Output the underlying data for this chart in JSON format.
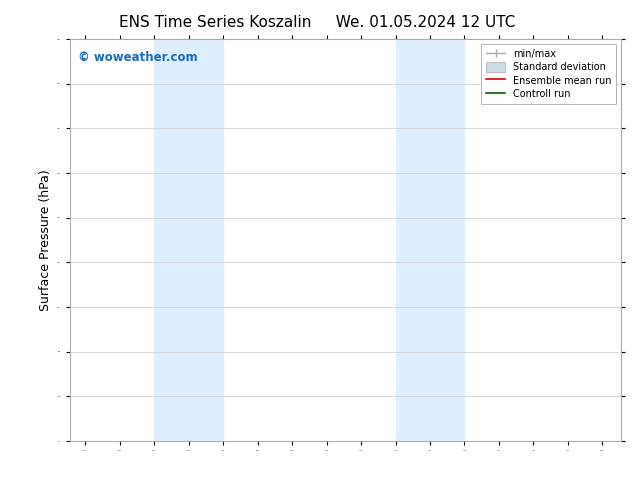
{
  "title_left": "ENS Time Series Koszalin",
  "title_right": "We. 01.05.2024 12 UTC",
  "ylabel": "Surface Pressure (hPa)",
  "xlabel": "",
  "xlim": [
    1.55,
    17.55
  ],
  "ylim": [
    970,
    1060
  ],
  "yticks": [
    970,
    980,
    990,
    1000,
    1010,
    1020,
    1030,
    1040,
    1050,
    1060
  ],
  "xtick_labels": [
    "02.05",
    "03.05",
    "04.05",
    "05.05",
    "06.05",
    "07.05",
    "08.05",
    "09.05",
    "10.05",
    "11.05",
    "12.05",
    "13.05",
    "14.05",
    "15.05",
    "16.05",
    "17.05"
  ],
  "xtick_positions": [
    2,
    3,
    4,
    5,
    6,
    7,
    8,
    9,
    10,
    11,
    12,
    13,
    14,
    15,
    16,
    17
  ],
  "shaded_bands": [
    {
      "x_start": 4.0,
      "x_end": 6.0
    },
    {
      "x_start": 11.0,
      "x_end": 13.0
    }
  ],
  "band_color": "#ddeeff",
  "background_color": "#ffffff",
  "watermark_text": "© woweather.com",
  "watermark_color": "#1a6bb5",
  "title_fontsize": 11,
  "tick_fontsize": 7.5,
  "ylabel_fontsize": 9
}
